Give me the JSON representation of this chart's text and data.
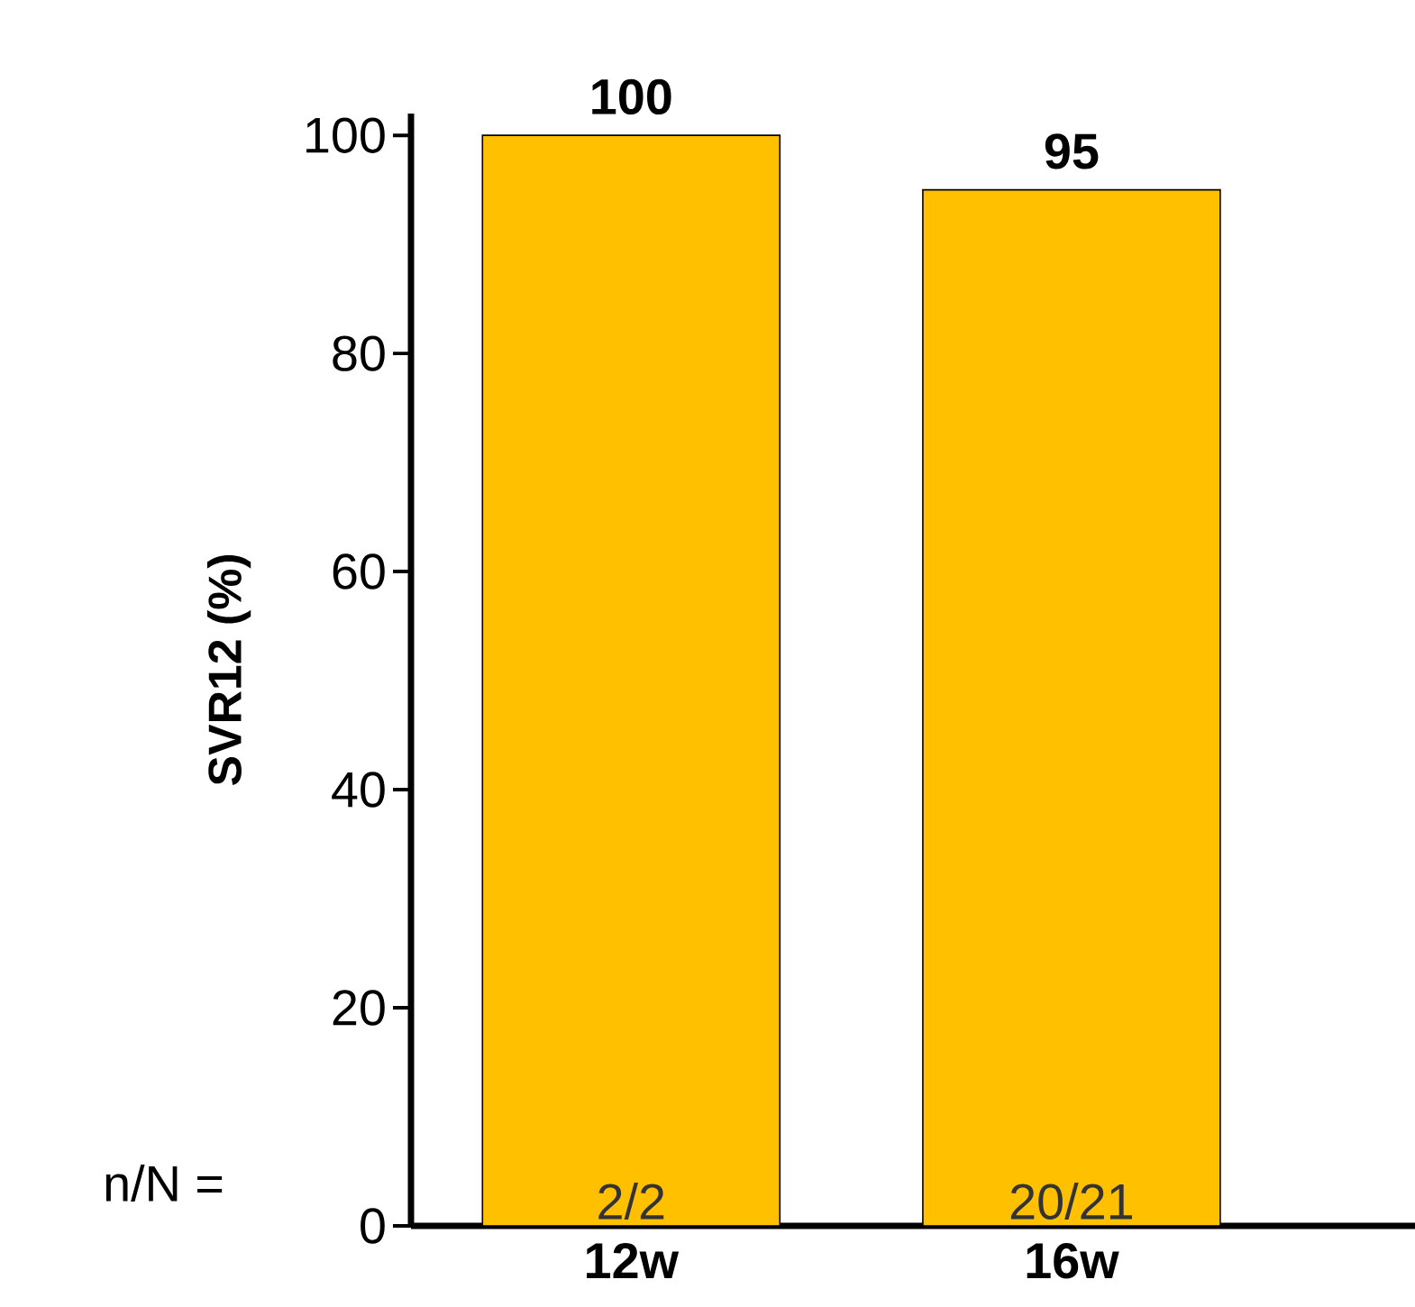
{
  "chart_data": {
    "type": "bar",
    "ylabel": "SVR12 (%)",
    "categories": [
      "12w",
      "16w"
    ],
    "values": [
      100,
      95
    ],
    "color": "#ffc000",
    "data_labels": true,
    "ylim": [
      0,
      102
    ],
    "yticks": [
      0,
      20,
      40,
      60,
      80,
      100
    ],
    "grid": false,
    "annotations": [
      "n/N =",
      "2/2",
      "20/21"
    ]
  }
}
